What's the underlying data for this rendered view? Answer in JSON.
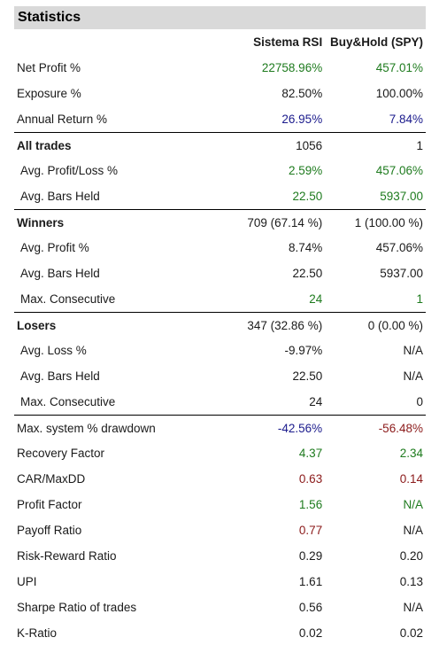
{
  "title": "Statistics",
  "columns": {
    "label": "",
    "a": "Sistema RSI",
    "b": "Buy&Hold (SPY)"
  },
  "colors": {
    "green": "#1e7b1e",
    "blue": "#1a1a8c",
    "darkred": "#8b1a1a",
    "black": "#1a1a1a"
  },
  "rows": [
    {
      "label": "Net Profit %",
      "a": "22758.96%",
      "b": "457.01%",
      "ca": "green",
      "cb": "green",
      "sep": false,
      "bold": false,
      "indent": false
    },
    {
      "label": "Exposure %",
      "a": "82.50%",
      "b": "100.00%",
      "ca": "black",
      "cb": "black",
      "sep": false,
      "bold": false,
      "indent": false
    },
    {
      "label": "Annual Return %",
      "a": "26.95%",
      "b": "7.84%",
      "ca": "blue",
      "cb": "blue",
      "sep": false,
      "bold": false,
      "indent": false
    },
    {
      "label": "All trades",
      "a": "1056",
      "b": "1",
      "ca": "black",
      "cb": "black",
      "sep": true,
      "bold": true,
      "indent": false
    },
    {
      "label": "Avg. Profit/Loss %",
      "a": "2.59%",
      "b": "457.06%",
      "ca": "green",
      "cb": "green",
      "sep": false,
      "bold": false,
      "indent": true
    },
    {
      "label": "Avg. Bars Held",
      "a": "22.50",
      "b": "5937.00",
      "ca": "green",
      "cb": "green",
      "sep": false,
      "bold": false,
      "indent": true
    },
    {
      "label": "Winners",
      "a": "709 (67.14 %)",
      "b": "1 (100.00 %)",
      "ca": "black",
      "cb": "black",
      "sep": true,
      "bold": true,
      "indent": false
    },
    {
      "label": "Avg. Profit %",
      "a": "8.74%",
      "b": "457.06%",
      "ca": "black",
      "cb": "black",
      "sep": false,
      "bold": false,
      "indent": true
    },
    {
      "label": "Avg. Bars Held",
      "a": "22.50",
      "b": "5937.00",
      "ca": "black",
      "cb": "black",
      "sep": false,
      "bold": false,
      "indent": true
    },
    {
      "label": "Max. Consecutive",
      "a": "24",
      "b": "1",
      "ca": "green",
      "cb": "green",
      "sep": false,
      "bold": false,
      "indent": true
    },
    {
      "label": "Losers",
      "a": "347 (32.86 %)",
      "b": "0 (0.00 %)",
      "ca": "black",
      "cb": "black",
      "sep": true,
      "bold": true,
      "indent": false
    },
    {
      "label": "Avg. Loss %",
      "a": "-9.97%",
      "b": "N/A",
      "ca": "black",
      "cb": "black",
      "sep": false,
      "bold": false,
      "indent": true
    },
    {
      "label": "Avg. Bars Held",
      "a": "22.50",
      "b": "N/A",
      "ca": "black",
      "cb": "black",
      "sep": false,
      "bold": false,
      "indent": true
    },
    {
      "label": "Max. Consecutive",
      "a": "24",
      "b": "0",
      "ca": "black",
      "cb": "black",
      "sep": false,
      "bold": false,
      "indent": true
    },
    {
      "label": "Max. system % drawdown",
      "a": "-42.56%",
      "b": "-56.48%",
      "ca": "blue",
      "cb": "darkred",
      "sep": true,
      "bold": false,
      "indent": false
    },
    {
      "label": "Recovery Factor",
      "a": "4.37",
      "b": "2.34",
      "ca": "green",
      "cb": "green",
      "sep": false,
      "bold": false,
      "indent": false
    },
    {
      "label": "CAR/MaxDD",
      "a": "0.63",
      "b": "0.14",
      "ca": "darkred",
      "cb": "darkred",
      "sep": false,
      "bold": false,
      "indent": false
    },
    {
      "label": "Profit Factor",
      "a": "1.56",
      "b": "N/A",
      "ca": "green",
      "cb": "green",
      "sep": false,
      "bold": false,
      "indent": false
    },
    {
      "label": "Payoff Ratio",
      "a": "0.77",
      "b": "N/A",
      "ca": "darkred",
      "cb": "black",
      "sep": false,
      "bold": false,
      "indent": false
    },
    {
      "label": "Risk-Reward Ratio",
      "a": "0.29",
      "b": "0.20",
      "ca": "black",
      "cb": "black",
      "sep": false,
      "bold": false,
      "indent": false
    },
    {
      "label": "UPI",
      "a": "1.61",
      "b": "0.13",
      "ca": "black",
      "cb": "black",
      "sep": false,
      "bold": false,
      "indent": false
    },
    {
      "label": "Sharpe Ratio of trades",
      "a": "0.56",
      "b": "N/A",
      "ca": "black",
      "cb": "black",
      "sep": false,
      "bold": false,
      "indent": false
    },
    {
      "label": "K-Ratio",
      "a": "0.02",
      "b": "0.02",
      "ca": "black",
      "cb": "black",
      "sep": false,
      "bold": false,
      "indent": false
    }
  ]
}
